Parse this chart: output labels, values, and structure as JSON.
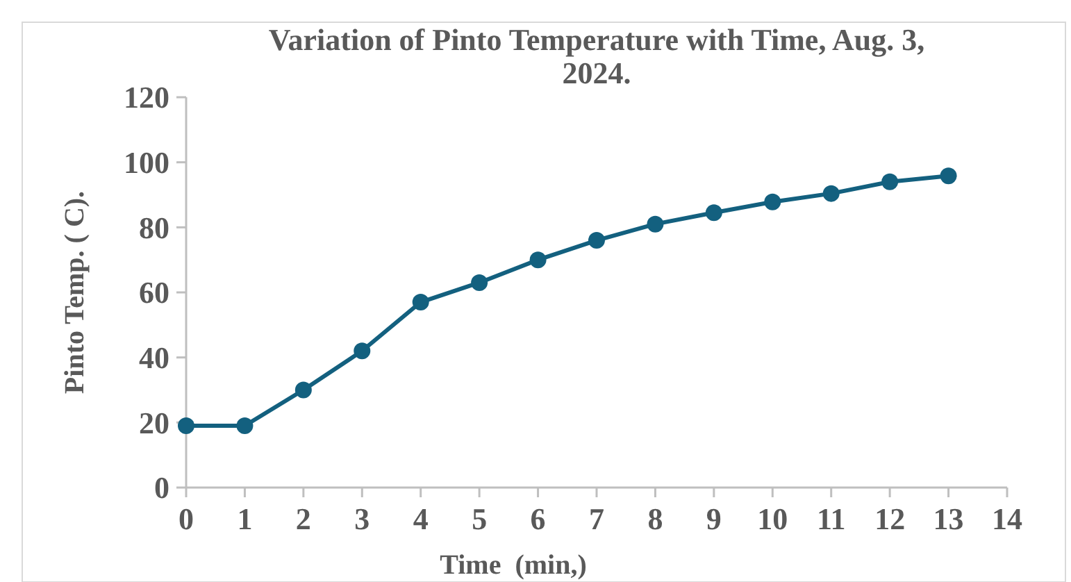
{
  "chart_data": {
    "type": "line",
    "title": "Variation of Pinto Temperature with Time, Aug. 3, 2024.",
    "xlabel": "Time  (min,)",
    "ylabel": "Pinto Temp. ( C).",
    "x": [
      0,
      1,
      2,
      3,
      4,
      5,
      6,
      7,
      8,
      9,
      10,
      11,
      12,
      13
    ],
    "series": [
      {
        "color": "#13607f",
        "values": [
          19,
          19,
          30,
          42,
          57,
          63,
          70,
          76,
          81,
          84.5,
          87.8,
          90.4,
          94,
          95.8
        ]
      }
    ],
    "xlim": [
      0,
      14
    ],
    "xticks": [
      0,
      1,
      2,
      3,
      4,
      5,
      6,
      7,
      8,
      9,
      10,
      11,
      12,
      13,
      14
    ],
    "ylim": [
      0,
      120
    ],
    "yticks": [
      0,
      20,
      40,
      60,
      80,
      100,
      120
    ],
    "marker": "circle",
    "line_style": "solid"
  }
}
